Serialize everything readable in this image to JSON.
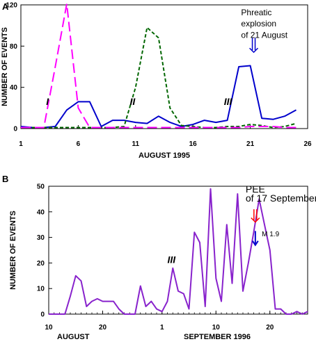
{
  "chart_data": [
    {
      "panel_label": "A",
      "type": "line",
      "title": "",
      "xlabel": "AUGUST 1995",
      "ylabel": "NUMBER OF EVENTS",
      "xlim": [
        1,
        26
      ],
      "ylim": [
        0,
        120
      ],
      "xticks": [
        1,
        6,
        11,
        16,
        21,
        26
      ],
      "yticks": [
        0,
        40,
        80,
        120
      ],
      "grid": false,
      "series": [
        {
          "color": "#0000cc",
          "style": "solid",
          "x": [
            1,
            2,
            3,
            4,
            5,
            6,
            7,
            8,
            9,
            10,
            11,
            12,
            13,
            14,
            15,
            16,
            17,
            18,
            19,
            20,
            21,
            22,
            23,
            24,
            25
          ],
          "y": [
            2,
            1,
            1,
            2,
            18,
            26,
            26,
            2,
            8,
            8,
            6,
            5,
            12,
            6,
            2,
            4,
            8,
            6,
            8,
            60,
            61,
            10,
            9,
            12,
            18
          ]
        },
        {
          "color": "#006600",
          "style": "dashed",
          "x": [
            1,
            2,
            3,
            4,
            5,
            6,
            7,
            8,
            9,
            10,
            11,
            12,
            13,
            14,
            15,
            16,
            17,
            18,
            19,
            20,
            21,
            22,
            23,
            24,
            25
          ],
          "y": [
            1,
            1,
            1,
            1,
            1,
            1,
            1,
            1,
            1,
            2,
            40,
            98,
            88,
            20,
            3,
            2,
            1,
            1,
            2,
            2,
            4,
            3,
            1,
            2,
            5
          ]
        },
        {
          "color": "#ff00ff",
          "style": "long-dashed",
          "x": [
            1,
            2,
            3,
            4,
            5,
            6,
            7,
            8,
            9,
            10,
            11,
            12,
            13,
            14,
            15,
            16,
            17,
            18,
            19,
            20,
            21,
            22,
            23,
            24,
            25
          ],
          "y": [
            1,
            1,
            1,
            60,
            121,
            20,
            1,
            1,
            1,
            1,
            1,
            1,
            1,
            1,
            1,
            1,
            1,
            1,
            1,
            1,
            2,
            2,
            2,
            1,
            1
          ]
        }
      ],
      "annotations": [
        {
          "text": "I",
          "x": 3.2,
          "y": 23
        },
        {
          "text": "II",
          "x": 10.5,
          "y": 23
        },
        {
          "text": "III",
          "x": 18.7,
          "y": 23
        },
        {
          "text": "Phreatic",
          "x": 20.2,
          "y": 110
        },
        {
          "text": "explosion",
          "x": 20.2,
          "y": 99
        },
        {
          "text": "of 21 August",
          "x": 20.2,
          "y": 88
        }
      ],
      "arrow": {
        "x": 21.3,
        "y_from": 88,
        "y_to": 74,
        "color": "#0000cc",
        "style": "double"
      }
    },
    {
      "panel_label": "B",
      "type": "line",
      "title": "",
      "xlabel_left": "AUGUST",
      "xlabel_right": "SEPTEMBER 1996",
      "ylabel": "NUMBER OF EVENTS",
      "xlim": [
        0,
        48
      ],
      "ylim": [
        0,
        50
      ],
      "xticks": [
        0,
        10,
        21,
        31,
        41
      ],
      "xtick_labels": [
        "10",
        "20",
        "1",
        "10",
        "20"
      ],
      "yticks": [
        0,
        10,
        20,
        30,
        40,
        50
      ],
      "grid": false,
      "series": [
        {
          "color": "#8822cc",
          "style": "solid",
          "x": [
            0,
            1,
            2,
            3,
            4,
            5,
            6,
            7,
            8,
            9,
            10,
            11,
            12,
            13,
            14,
            15,
            16,
            17,
            18,
            19,
            20,
            21,
            22,
            23,
            24,
            25,
            26,
            27,
            28,
            29,
            30,
            31,
            32,
            33,
            34,
            35,
            36,
            37,
            38,
            39,
            40,
            41,
            42,
            43,
            44,
            45,
            46,
            47,
            48
          ],
          "y": [
            0,
            0,
            0,
            0,
            7,
            15,
            13,
            3,
            5,
            6,
            5,
            5,
            5,
            2,
            0,
            0,
            0,
            11,
            3,
            5,
            2,
            1,
            5,
            18,
            9,
            8,
            2,
            32,
            28,
            3,
            49,
            14,
            5,
            35,
            12,
            47,
            9,
            20,
            32,
            45,
            35,
            25,
            2,
            2,
            0,
            0,
            1,
            0,
            1
          ]
        }
      ],
      "annotations": [
        {
          "text": "III",
          "x": 22,
          "y": 20
        },
        {
          "text": "PEE",
          "x": 36.5,
          "y": 47.5
        },
        {
          "text": "of 17 September",
          "x": 36.5,
          "y": 44
        },
        {
          "text": "M 1.9",
          "x": 39.5,
          "y": 30.5
        }
      ],
      "arrows": [
        {
          "x": 38.3,
          "y_from": 41,
          "y_to": 36,
          "color": "#ff0000",
          "style": "double"
        },
        {
          "x": 38.3,
          "y_from": 32.5,
          "y_to": 27,
          "color": "#0000cc",
          "style": "single"
        }
      ]
    }
  ]
}
